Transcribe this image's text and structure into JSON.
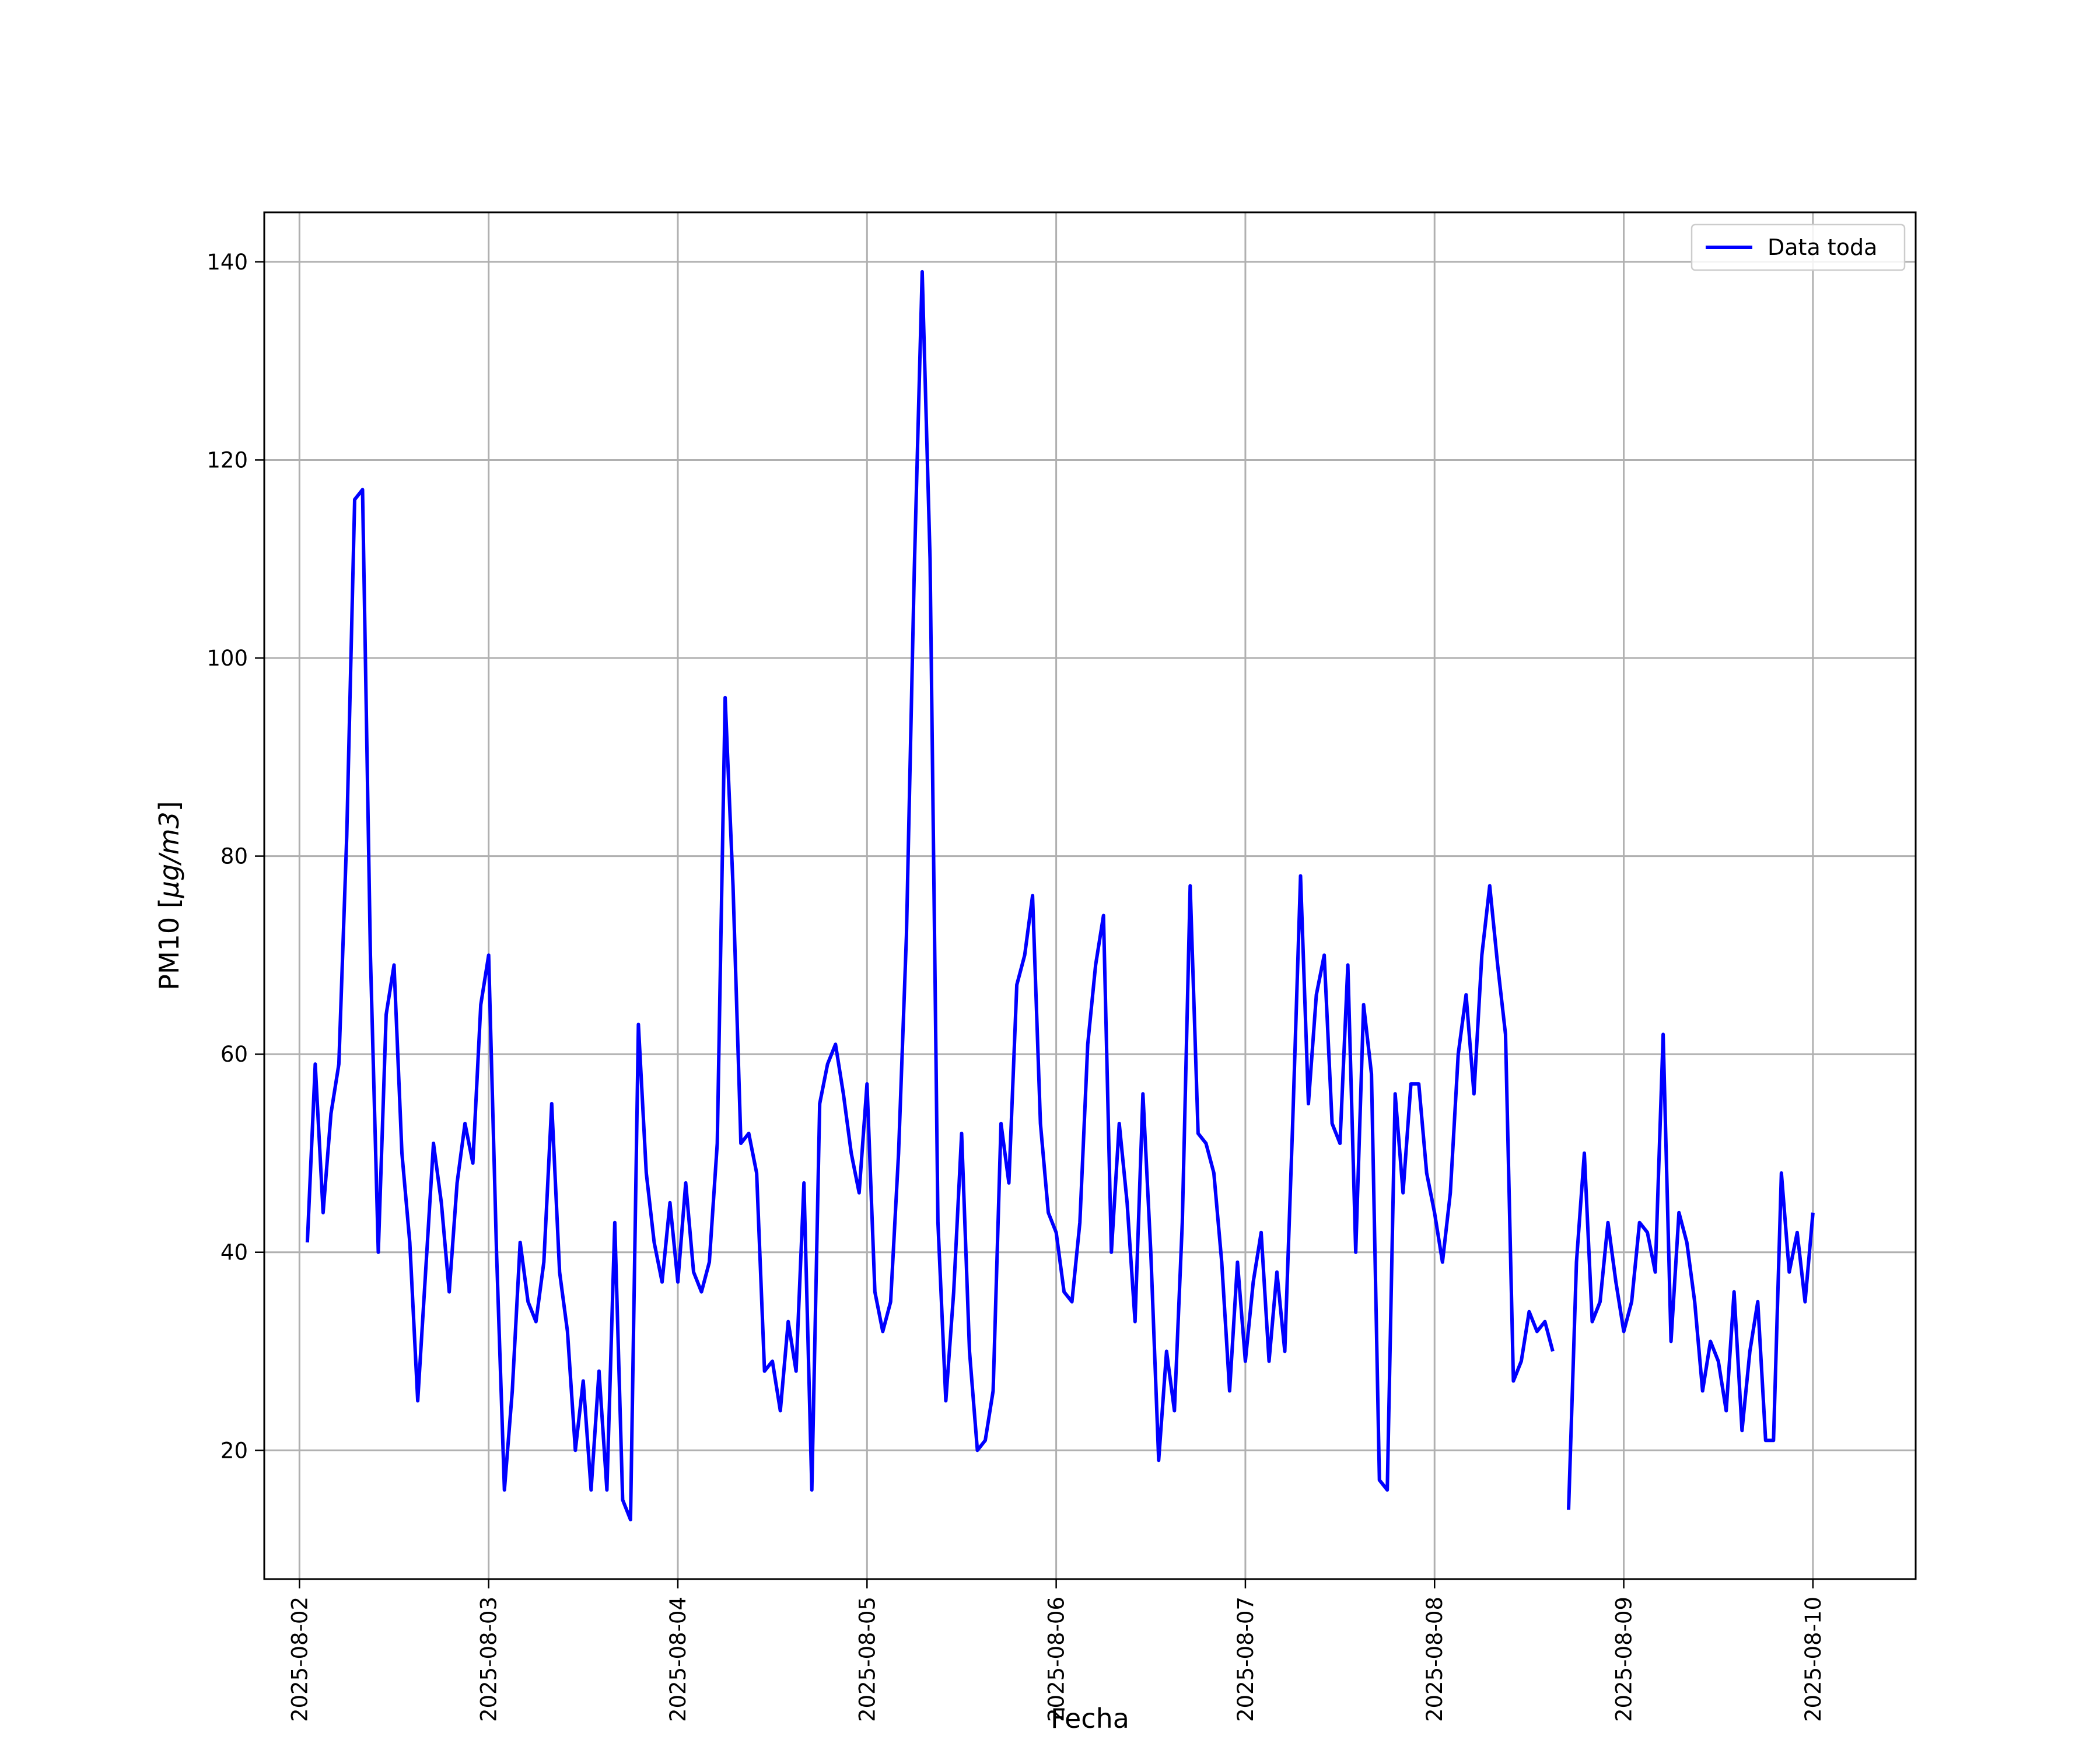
{
  "chart_data": {
    "type": "line",
    "title": "",
    "xlabel": "Fecha",
    "ylabel": "PM10 [μg/m3]",
    "x_ticks": [
      "2025-08-02",
      "2025-08-03",
      "2025-08-04",
      "2025-08-05",
      "2025-08-06",
      "2025-08-07",
      "2025-08-08",
      "2025-08-09",
      "2025-08-10"
    ],
    "y_ticks": [
      "20",
      "40",
      "60",
      "80",
      "100",
      "120",
      "140"
    ],
    "xlim": [
      "2025-08-01 19:32",
      "2025-08-10 13:02"
    ],
    "ylim": [
      7,
      145
    ],
    "grid": true,
    "legend_position": "top-right",
    "x_step_hours": 1,
    "series": [
      {
        "name": "Data toda",
        "color": "#0000ff",
        "x_start": "2025-08-02 01:00",
        "values": [
          41,
          59,
          44,
          54,
          59,
          82,
          116,
          117,
          70,
          40,
          64,
          69,
          50,
          41,
          25,
          38,
          51,
          45,
          36,
          47,
          53,
          49,
          65,
          70,
          40,
          16,
          26,
          41,
          35,
          33,
          39,
          55,
          38,
          32,
          20,
          27,
          16,
          28,
          16,
          43,
          15,
          13,
          63,
          48,
          41,
          37,
          45,
          37,
          47,
          38,
          36,
          39,
          51,
          96,
          77,
          51,
          52,
          48,
          28,
          29,
          24,
          33,
          28,
          47,
          16,
          55,
          59,
          61,
          56,
          50,
          46,
          57,
          36,
          32,
          35,
          50,
          72,
          109,
          139,
          110,
          43,
          25,
          36,
          52,
          30,
          20,
          21,
          26,
          53,
          47,
          67,
          70,
          76,
          53,
          44,
          42,
          36,
          35,
          43,
          61,
          69,
          74,
          40,
          53,
          45,
          33,
          56,
          40,
          19,
          30,
          24,
          43,
          77,
          52,
          51,
          48,
          39,
          26,
          39,
          29,
          37,
          42,
          29,
          38,
          30,
          53,
          78,
          55,
          66,
          70,
          53,
          51,
          69,
          40,
          65,
          58,
          17,
          16,
          56,
          46,
          57,
          57,
          48,
          44,
          39,
          46,
          60,
          66,
          56,
          70,
          77,
          69,
          62,
          27,
          29,
          34,
          32,
          33,
          30,
          null,
          14,
          39,
          50,
          33,
          35,
          43,
          37,
          32,
          35,
          43,
          42,
          38,
          62,
          31,
          44,
          41,
          35,
          26,
          31,
          29,
          24,
          36,
          22,
          30,
          35,
          21,
          21,
          48,
          38,
          42,
          35,
          44
        ]
      }
    ]
  }
}
